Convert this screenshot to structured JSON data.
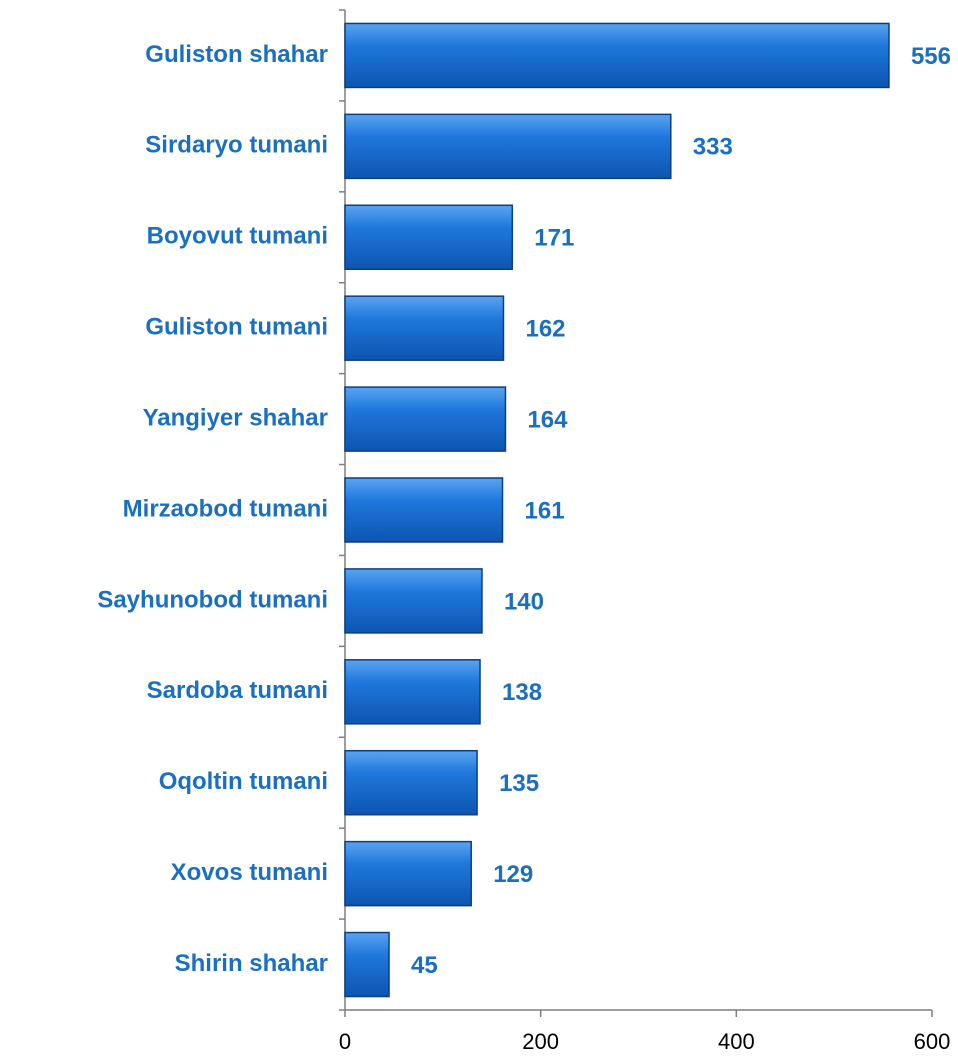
{
  "chart_data": {
    "type": "bar",
    "orientation": "horizontal",
    "categories": [
      "Guliston shahar",
      "Sirdaryo tumani",
      "Boyovut tumani",
      "Guliston tumani",
      "Yangiyer shahar",
      "Mirzaobod tumani",
      "Sayhunobod tumani",
      "Sardoba tumani",
      "Oqoltin tumani",
      "Xovos tumani",
      "Shirin shahar"
    ],
    "values": [
      556,
      333,
      171,
      162,
      164,
      161,
      140,
      138,
      135,
      129,
      45
    ],
    "color": "#1a6fd0",
    "xlim": [
      0,
      600
    ],
    "xticks": [
      0,
      200,
      400,
      600
    ],
    "grid": false
  }
}
